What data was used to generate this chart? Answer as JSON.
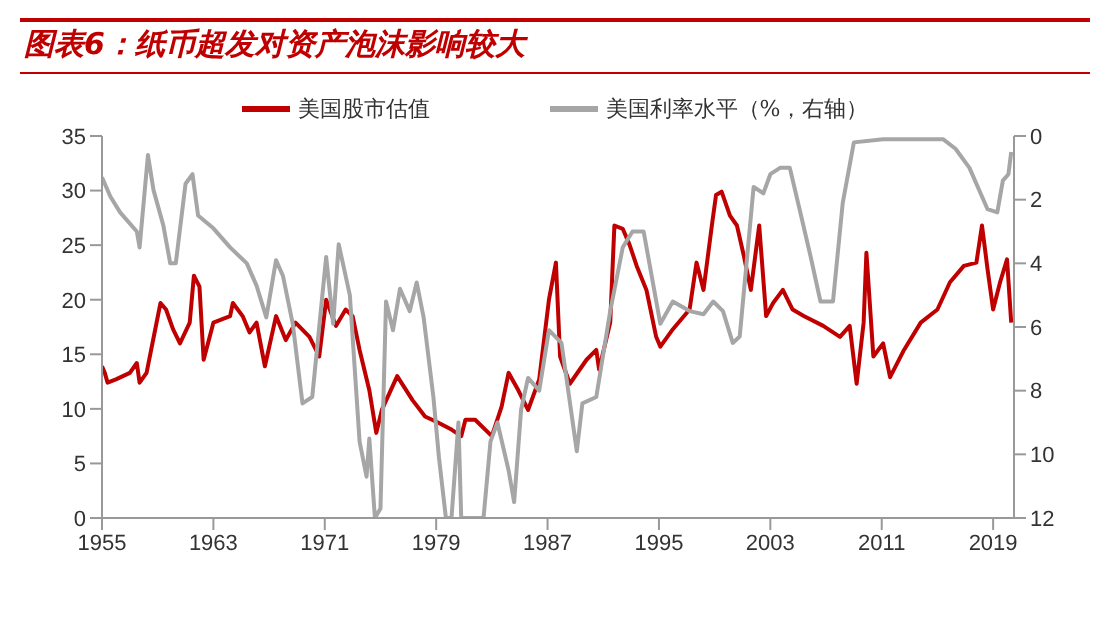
{
  "chart_data": {
    "type": "line",
    "title": "图表6：纸币超发对资产泡沫影响较大",
    "xlim": [
      1955,
      2020.5
    ],
    "xticks": [
      1955,
      1963,
      1971,
      1979,
      1987,
      1995,
      2003,
      2011,
      2019
    ],
    "ylim": [
      0,
      35
    ],
    "yticks": [
      0,
      5,
      10,
      15,
      20,
      25,
      30,
      35
    ],
    "y2lim": [
      12,
      0
    ],
    "y2ticks": [
      0,
      2,
      4,
      6,
      8,
      10,
      12
    ],
    "legend": "top",
    "marker": "none",
    "line_style": "solid",
    "series": [
      {
        "name": "美国股市估值",
        "color": "#c00000",
        "x": [
          1955,
          1955.2,
          1955.4,
          1956,
          1957,
          1957.5,
          1957.7,
          1958.2,
          1959.2,
          1959.6,
          1960.1,
          1960.6,
          1961.3,
          1961.6,
          1962,
          1962.3,
          1963,
          1964.2,
          1964.4,
          1965.1,
          1965.6,
          1966.1,
          1966.7,
          1967.5,
          1968.2,
          1968.9,
          1969.9,
          1970.6,
          1971.1,
          1971.8,
          1972.5,
          1973,
          1973.5,
          1974.2,
          1974.7,
          1975.1,
          1976.2,
          1977.3,
          1978.2,
          1979.2,
          1980.1,
          1980.8,
          1981.1,
          1981.8,
          1983,
          1983.7,
          1984.2,
          1984.9,
          1985.6,
          1986.4,
          1987.1,
          1987.6,
          1987.9,
          1988.6,
          1989.8,
          1990.5,
          1990.7,
          1991.5,
          1991.8,
          1992.4,
          1992.9,
          1993.4,
          1994.1,
          1994.8,
          1995.1,
          1996,
          1997.2,
          1997.7,
          1998.2,
          1998.8,
          1999.1,
          1999.5,
          2000.1,
          2000.6,
          2001.1,
          2001.6,
          2002.2,
          2002.7,
          2003.2,
          2003.9,
          2004.6,
          2005.4,
          2006.8,
          2008,
          2008.7,
          2009.2,
          2009.7,
          2009.9,
          2010.4,
          2011.1,
          2011.6,
          2012.6,
          2013.8,
          2015,
          2015.9,
          2016.9,
          2017.8,
          2018.2,
          2018.6,
          2019,
          2019.5,
          2020,
          2020.3
        ],
        "values": [
          13.9,
          13.3,
          12.4,
          12.7,
          13.3,
          14.2,
          12.4,
          13.3,
          19.7,
          19.1,
          17.3,
          16.0,
          17.9,
          22.2,
          21.2,
          14.5,
          17.9,
          18.5,
          19.7,
          18.5,
          17.0,
          17.9,
          13.9,
          18.5,
          16.3,
          17.9,
          16.6,
          14.8,
          20.0,
          17.6,
          19.1,
          18.5,
          15.4,
          11.7,
          7.8,
          9.9,
          13.0,
          10.8,
          9.3,
          8.7,
          8.1,
          7.5,
          9.0,
          9.0,
          7.5,
          10.2,
          13.3,
          11.7,
          9.9,
          12.7,
          20.0,
          23.4,
          14.8,
          12.3,
          14.5,
          15.4,
          13.6,
          17.9,
          26.8,
          26.5,
          25.0,
          23.1,
          20.9,
          16.6,
          15.7,
          17.3,
          19.1,
          23.4,
          20.9,
          26.8,
          29.6,
          29.9,
          27.7,
          26.8,
          24.0,
          20.9,
          26.8,
          18.5,
          19.7,
          20.9,
          19.1,
          18.5,
          17.6,
          16.6,
          17.6,
          12.3,
          17.9,
          24.3,
          14.8,
          16.0,
          12.9,
          15.4,
          17.9,
          19.1,
          21.6,
          23.1,
          23.4,
          26.8,
          22.8,
          19.1,
          21.6,
          23.7,
          17.9
        ]
      },
      {
        "name": "美国利率水平（%，右轴）",
        "color": "#a6a6a6",
        "axis": "y2",
        "x": [
          1955,
          1955.6,
          1956.3,
          1957.5,
          1957.7,
          1958.3,
          1958.7,
          1959.4,
          1959.9,
          1960.3,
          1961,
          1961.5,
          1961.9,
          1963,
          1964.2,
          1965.4,
          1966.1,
          1966.8,
          1967.5,
          1968,
          1968.7,
          1969.4,
          1970.1,
          1971.1,
          1971.6,
          1972,
          1972.8,
          1973.5,
          1974,
          1974.2,
          1974.6,
          1975,
          1975.4,
          1975.9,
          1976.4,
          1977.1,
          1977.6,
          1978.1,
          1978.8,
          1979.2,
          1979.7,
          1980.1,
          1980.6,
          1980.8,
          1982.4,
          1982.9,
          1983.4,
          1984.2,
          1984.6,
          1985.1,
          1985.6,
          1986.4,
          1987.1,
          1988,
          1989.1,
          1989.5,
          1990.5,
          1991.5,
          1992.4,
          1993.1,
          1993.9,
          1995.1,
          1996,
          1997.2,
          1998.2,
          1998.9,
          1999.6,
          2000.3,
          2000.8,
          2001.8,
          2002.5,
          2003,
          2003.7,
          2004.4,
          2005.1,
          2005.9,
          2006.6,
          2007.5,
          2008.2,
          2009,
          2011.1,
          2013,
          2015.4,
          2016.3,
          2017.3,
          2018.6,
          2019.3,
          2019.7,
          2020.1,
          2020.3
        ],
        "values": [
          1.3,
          1.9,
          2.4,
          3.0,
          3.5,
          0.6,
          1.7,
          2.8,
          4.0,
          4.0,
          1.5,
          1.2,
          2.5,
          2.9,
          3.5,
          4.0,
          4.7,
          5.7,
          3.9,
          4.4,
          5.9,
          8.4,
          8.2,
          3.8,
          5.9,
          3.4,
          5.0,
          9.6,
          10.7,
          9.5,
          12,
          11.7,
          5.2,
          6.1,
          4.8,
          5.5,
          4.6,
          5.7,
          8.2,
          10.1,
          12,
          12,
          9.0,
          12,
          12,
          9.6,
          9.0,
          10.5,
          11.5,
          8.6,
          7.6,
          8.0,
          6.1,
          6.5,
          9.9,
          8.4,
          8.2,
          5.5,
          3.5,
          3.0,
          3.0,
          5.9,
          5.2,
          5.5,
          5.6,
          5.2,
          5.5,
          6.5,
          6.3,
          1.6,
          1.8,
          1.2,
          1.0,
          1.0,
          2.3,
          3.8,
          5.2,
          5.2,
          2.1,
          0.2,
          0.1,
          0.1,
          0.1,
          0.4,
          1.0,
          2.3,
          2.4,
          1.4,
          1.2,
          0.5
        ]
      }
    ]
  }
}
